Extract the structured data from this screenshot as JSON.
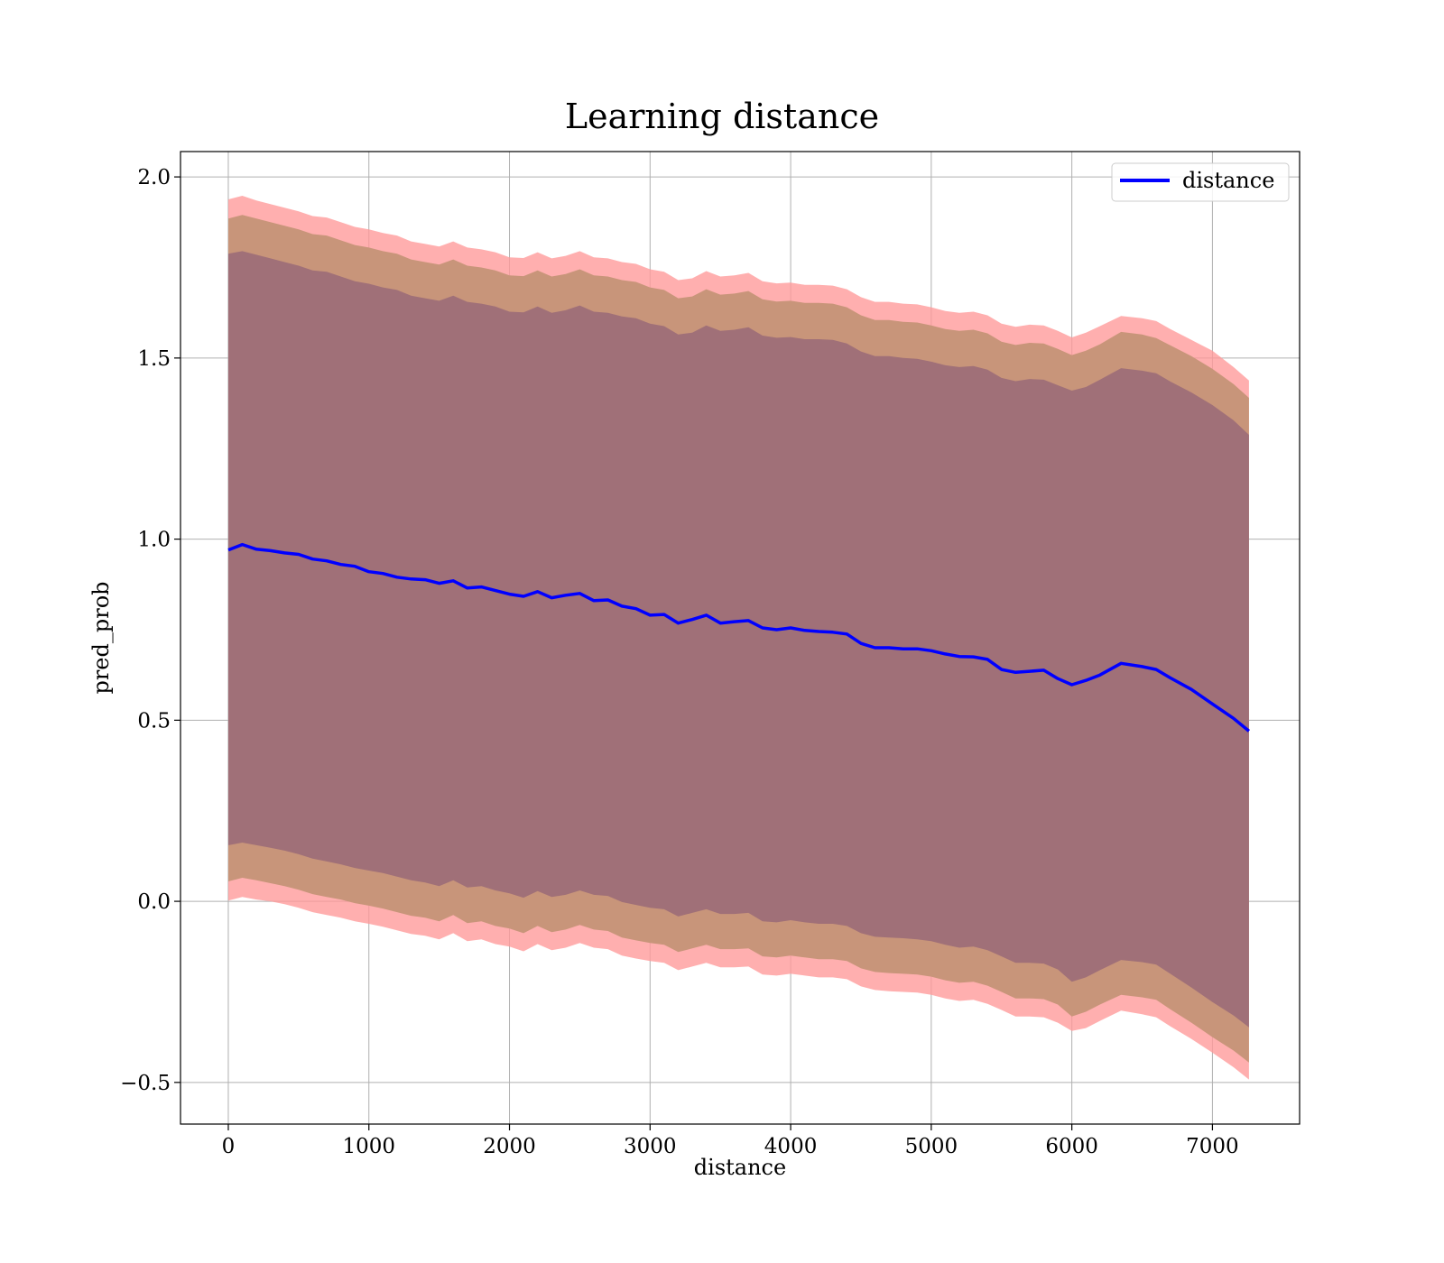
{
  "chart_data": {
    "type": "line",
    "title": "Learning distance",
    "xlabel": "distance",
    "ylabel": "pred_prob",
    "xlim": [
      -340,
      7620
    ],
    "ylim": [
      -0.615,
      2.07
    ],
    "xticks": [
      0,
      1000,
      2000,
      3000,
      4000,
      5000,
      6000,
      7000
    ],
    "yticks": [
      2.0,
      1.5,
      1.0,
      0.5,
      0.0,
      -0.5
    ],
    "xtick_labels": [
      "0",
      "1000",
      "2000",
      "3000",
      "4000",
      "5000",
      "6000",
      "7000"
    ],
    "ytick_labels": [
      "2.0",
      "1.5",
      "1.0",
      "0.5",
      "0.0",
      "−0.5"
    ],
    "grid": true,
    "legend": {
      "placement": "top-right",
      "entries": [
        "distance"
      ]
    },
    "colors": {
      "line": "#0000ff",
      "band_outer": "#ff9999",
      "band_middle": "#c8957a",
      "band_inner": "#a07078",
      "grid": "#b0b0b0"
    },
    "series": [
      {
        "name": "distance",
        "x": [
          0,
          100,
          200,
          300,
          400,
          500,
          600,
          700,
          800,
          900,
          1000,
          1100,
          1200,
          1300,
          1400,
          1500,
          1600,
          1700,
          1800,
          1900,
          2000,
          2100,
          2200,
          2300,
          2400,
          2500,
          2600,
          2700,
          2800,
          2900,
          3000,
          3100,
          3200,
          3300,
          3400,
          3500,
          3600,
          3700,
          3800,
          3900,
          4000,
          4100,
          4200,
          4300,
          4400,
          4500,
          4600,
          4700,
          4800,
          4900,
          5000,
          5100,
          5200,
          5300,
          5400,
          5500,
          5600,
          5700,
          5800,
          5900,
          6000,
          6100,
          6200,
          6350,
          6500,
          6600,
          6700,
          6850,
          7000,
          7150,
          7260
        ],
        "y": [
          0.97,
          0.985,
          0.972,
          0.968,
          0.962,
          0.958,
          0.945,
          0.94,
          0.93,
          0.925,
          0.91,
          0.905,
          0.895,
          0.89,
          0.888,
          0.878,
          0.885,
          0.865,
          0.868,
          0.858,
          0.848,
          0.842,
          0.855,
          0.838,
          0.845,
          0.85,
          0.83,
          0.832,
          0.815,
          0.808,
          0.79,
          0.792,
          0.768,
          0.778,
          0.79,
          0.768,
          0.772,
          0.775,
          0.755,
          0.75,
          0.755,
          0.748,
          0.745,
          0.743,
          0.738,
          0.712,
          0.7,
          0.7,
          0.697,
          0.697,
          0.692,
          0.683,
          0.676,
          0.675,
          0.668,
          0.64,
          0.632,
          0.635,
          0.638,
          0.615,
          0.598,
          0.61,
          0.625,
          0.657,
          0.648,
          0.64,
          0.617,
          0.585,
          0.545,
          0.505,
          0.47
        ],
        "bands": [
          {
            "name": "outer",
            "upper": [
              1.938,
              1.948,
              1.935,
              1.925,
              1.915,
              1.905,
              1.892,
              1.888,
              1.875,
              1.862,
              1.855,
              1.845,
              1.838,
              1.822,
              1.815,
              1.808,
              1.822,
              1.805,
              1.8,
              1.792,
              1.778,
              1.776,
              1.792,
              1.775,
              1.782,
              1.795,
              1.778,
              1.775,
              1.765,
              1.76,
              1.745,
              1.738,
              1.715,
              1.72,
              1.74,
              1.725,
              1.728,
              1.735,
              1.712,
              1.706,
              1.708,
              1.702,
              1.702,
              1.7,
              1.69,
              1.668,
              1.655,
              1.655,
              1.65,
              1.648,
              1.64,
              1.63,
              1.625,
              1.628,
              1.618,
              1.595,
              1.586,
              1.592,
              1.59,
              1.575,
              1.557,
              1.57,
              1.588,
              1.616,
              1.61,
              1.602,
              1.58,
              1.55,
              1.52,
              1.475,
              1.438
            ],
            "lower": [
              0.002,
              0.012,
              0.005,
              0.0,
              -0.008,
              -0.018,
              -0.03,
              -0.038,
              -0.045,
              -0.055,
              -0.062,
              -0.07,
              -0.08,
              -0.09,
              -0.095,
              -0.105,
              -0.088,
              -0.11,
              -0.105,
              -0.118,
              -0.125,
              -0.138,
              -0.118,
              -0.135,
              -0.128,
              -0.115,
              -0.128,
              -0.132,
              -0.15,
              -0.158,
              -0.165,
              -0.17,
              -0.19,
              -0.18,
              -0.17,
              -0.182,
              -0.182,
              -0.18,
              -0.202,
              -0.205,
              -0.2,
              -0.205,
              -0.21,
              -0.21,
              -0.215,
              -0.235,
              -0.245,
              -0.248,
              -0.25,
              -0.252,
              -0.258,
              -0.268,
              -0.275,
              -0.272,
              -0.283,
              -0.3,
              -0.318,
              -0.318,
              -0.32,
              -0.335,
              -0.358,
              -0.35,
              -0.33,
              -0.302,
              -0.312,
              -0.32,
              -0.345,
              -0.38,
              -0.418,
              -0.458,
              -0.492
            ]
          },
          {
            "name": "middle",
            "upper": [
              1.885,
              1.895,
              1.885,
              1.875,
              1.865,
              1.855,
              1.842,
              1.838,
              1.825,
              1.812,
              1.805,
              1.795,
              1.788,
              1.772,
              1.765,
              1.758,
              1.772,
              1.755,
              1.75,
              1.742,
              1.728,
              1.726,
              1.742,
              1.725,
              1.732,
              1.745,
              1.728,
              1.725,
              1.715,
              1.71,
              1.695,
              1.688,
              1.665,
              1.67,
              1.69,
              1.675,
              1.678,
              1.685,
              1.662,
              1.656,
              1.658,
              1.652,
              1.652,
              1.65,
              1.64,
              1.618,
              1.605,
              1.605,
              1.6,
              1.598,
              1.59,
              1.58,
              1.575,
              1.578,
              1.568,
              1.545,
              1.536,
              1.542,
              1.54,
              1.525,
              1.508,
              1.52,
              1.538,
              1.572,
              1.565,
              1.555,
              1.535,
              1.505,
              1.47,
              1.428,
              1.39
            ],
            "lower": [
              0.055,
              0.065,
              0.058,
              0.05,
              0.042,
              0.032,
              0.02,
              0.012,
              0.005,
              -0.005,
              -0.012,
              -0.02,
              -0.03,
              -0.04,
              -0.045,
              -0.055,
              -0.038,
              -0.06,
              -0.055,
              -0.068,
              -0.075,
              -0.088,
              -0.068,
              -0.085,
              -0.078,
              -0.065,
              -0.078,
              -0.082,
              -0.1,
              -0.108,
              -0.115,
              -0.12,
              -0.14,
              -0.13,
              -0.12,
              -0.132,
              -0.132,
              -0.13,
              -0.152,
              -0.155,
              -0.15,
              -0.155,
              -0.16,
              -0.16,
              -0.165,
              -0.185,
              -0.195,
              -0.198,
              -0.2,
              -0.202,
              -0.208,
              -0.218,
              -0.225,
              -0.222,
              -0.233,
              -0.25,
              -0.268,
              -0.268,
              -0.27,
              -0.285,
              -0.318,
              -0.305,
              -0.285,
              -0.258,
              -0.265,
              -0.272,
              -0.298,
              -0.335,
              -0.375,
              -0.412,
              -0.445
            ]
          },
          {
            "name": "inner",
            "upper": [
              1.788,
              1.795,
              1.785,
              1.775,
              1.765,
              1.755,
              1.742,
              1.738,
              1.725,
              1.712,
              1.705,
              1.695,
              1.688,
              1.672,
              1.665,
              1.658,
              1.672,
              1.655,
              1.65,
              1.642,
              1.628,
              1.626,
              1.642,
              1.625,
              1.632,
              1.645,
              1.628,
              1.625,
              1.615,
              1.61,
              1.595,
              1.588,
              1.565,
              1.57,
              1.59,
              1.575,
              1.578,
              1.585,
              1.562,
              1.556,
              1.558,
              1.552,
              1.552,
              1.55,
              1.54,
              1.518,
              1.505,
              1.505,
              1.5,
              1.498,
              1.49,
              1.48,
              1.475,
              1.478,
              1.468,
              1.445,
              1.436,
              1.442,
              1.44,
              1.425,
              1.41,
              1.42,
              1.44,
              1.472,
              1.465,
              1.458,
              1.435,
              1.405,
              1.37,
              1.328,
              1.288
            ],
            "lower": [
              0.155,
              0.162,
              0.155,
              0.148,
              0.14,
              0.13,
              0.118,
              0.11,
              0.102,
              0.092,
              0.085,
              0.078,
              0.068,
              0.058,
              0.052,
              0.042,
              0.058,
              0.038,
              0.042,
              0.03,
              0.022,
              0.01,
              0.028,
              0.012,
              0.018,
              0.03,
              0.018,
              0.015,
              -0.002,
              -0.01,
              -0.018,
              -0.022,
              -0.042,
              -0.032,
              -0.022,
              -0.035,
              -0.035,
              -0.032,
              -0.055,
              -0.058,
              -0.052,
              -0.058,
              -0.062,
              -0.062,
              -0.068,
              -0.088,
              -0.098,
              -0.1,
              -0.102,
              -0.105,
              -0.11,
              -0.12,
              -0.128,
              -0.125,
              -0.135,
              -0.152,
              -0.17,
              -0.17,
              -0.172,
              -0.188,
              -0.222,
              -0.21,
              -0.19,
              -0.162,
              -0.168,
              -0.175,
              -0.2,
              -0.238,
              -0.278,
              -0.315,
              -0.348
            ]
          }
        ]
      }
    ]
  }
}
